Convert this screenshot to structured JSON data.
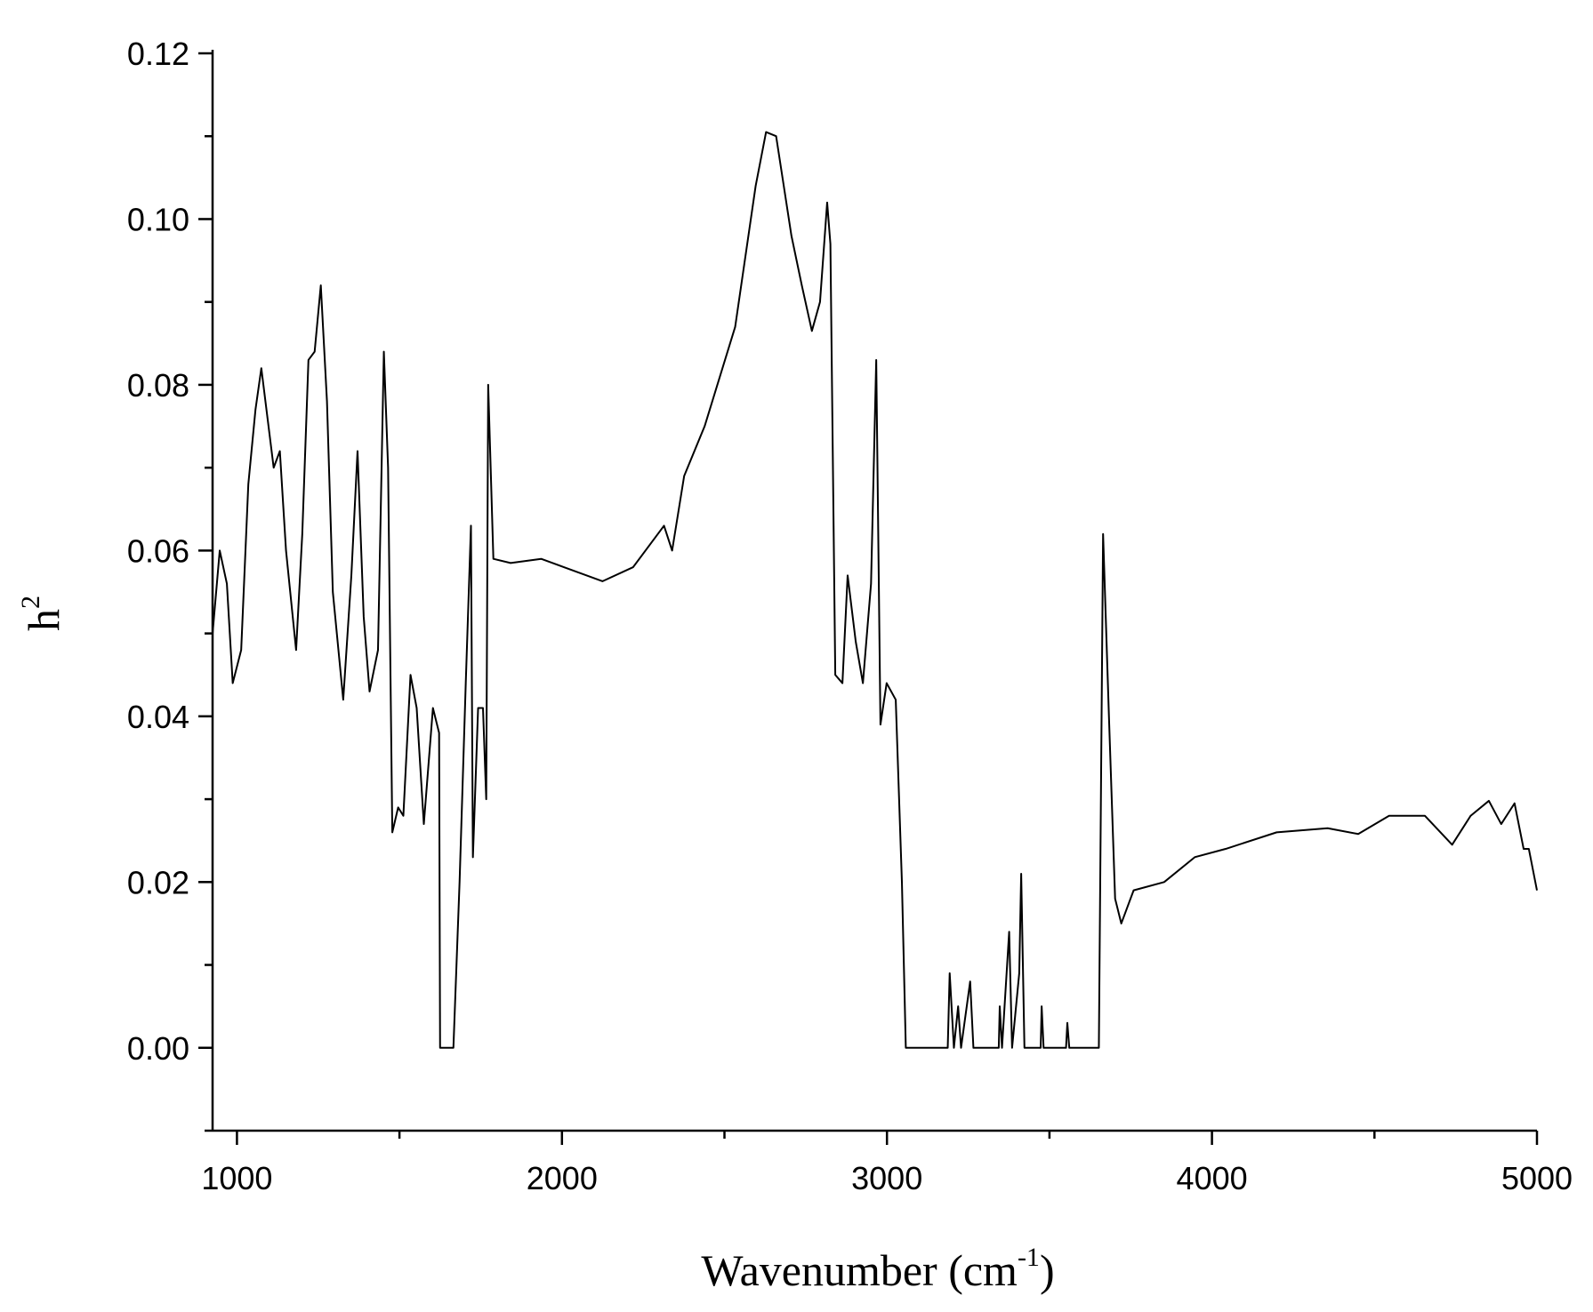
{
  "chart_data": {
    "type": "line",
    "xlabel": {
      "text": "Wavenumber (cm",
      "superscript": "-1",
      "suffix": ")"
    },
    "ylabel": {
      "text": "h",
      "superscript": "2"
    },
    "color": "#000000",
    "xlim": [
      925,
      5000
    ],
    "xticks": [
      1000,
      2000,
      3000,
      4000,
      5000
    ],
    "xminor_ticks": [
      1500,
      2500,
      3500,
      4500
    ],
    "ylim": [
      -0.01,
      0.12
    ],
    "yticks": [
      {
        "value": 0,
        "label": "0.00"
      },
      0.02,
      0.04,
      0.06,
      0.08,
      {
        "value": 0.1,
        "label": "0.10"
      },
      0.12
    ],
    "yminor_ticks": [
      -0.01,
      0.01,
      0.03,
      0.05,
      0.07,
      0.09,
      0.11
    ],
    "x": [
      925,
      947,
      969,
      987,
      1013,
      1035,
      1057,
      1075,
      1094,
      1113,
      1132,
      1151,
      1182,
      1201,
      1220,
      1239,
      1258,
      1277,
      1295,
      1327,
      1352,
      1371,
      1390,
      1408,
      1434,
      1452,
      1465,
      1478,
      1496,
      1512,
      1534,
      1553,
      1575,
      1603,
      1622,
      1625,
      1666,
      1685,
      1704,
      1720,
      1726,
      1742,
      1757,
      1767,
      1773,
      1789,
      1842,
      1936,
      2125,
      2219,
      2314,
      2339,
      2376,
      2439,
      2533,
      2596,
      2628,
      2659,
      2706,
      2738,
      2769,
      2794,
      2816,
      2826,
      2841,
      2863,
      2879,
      2904,
      2926,
      2951,
      2967,
      2980,
      2999,
      3027,
      3046,
      3058,
      3187,
      3193,
      3206,
      3219,
      3228,
      3256,
      3266,
      3344,
      3347,
      3354,
      3376,
      3385,
      3407,
      3413,
      3423,
      3473,
      3476,
      3482,
      3551,
      3555,
      3561,
      3652,
      3665,
      3683,
      3702,
      3721,
      3759,
      3853,
      3947,
      4042,
      4199,
      4356,
      4450,
      4545,
      4655,
      4739,
      4796,
      4852,
      4890,
      4931,
      4959,
      4975,
      5000
    ],
    "values": [
      0.05,
      0.06,
      0.056,
      0.044,
      0.048,
      0.068,
      0.077,
      0.082,
      0.076,
      0.07,
      0.072,
      0.06,
      0.048,
      0.062,
      0.083,
      0.084,
      0.092,
      0.078,
      0.055,
      0.042,
      0.057,
      0.072,
      0.052,
      0.043,
      0.048,
      0.084,
      0.07,
      0.026,
      0.029,
      0.028,
      0.045,
      0.041,
      0.027,
      0.041,
      0.038,
      0.0,
      0.0,
      0.02,
      0.044,
      0.063,
      0.023,
      0.041,
      0.041,
      0.03,
      0.08,
      0.059,
      0.0585,
      0.059,
      0.0563,
      0.058,
      0.063,
      0.06,
      0.069,
      0.075,
      0.087,
      0.104,
      0.1105,
      0.11,
      0.098,
      0.092,
      0.0865,
      0.09,
      0.102,
      0.097,
      0.045,
      0.044,
      0.057,
      0.049,
      0.044,
      0.056,
      0.083,
      0.039,
      0.044,
      0.042,
      0.02,
      0.0,
      0.0,
      0.009,
      0.0,
      0.005,
      0.0,
      0.008,
      0.0,
      0.0,
      0.005,
      0.0,
      0.014,
      0.0,
      0.009,
      0.021,
      0.0,
      0.0,
      0.005,
      0.0,
      0.0,
      0.003,
      0.0,
      0.0,
      0.062,
      0.04,
      0.018,
      0.015,
      0.019,
      0.02,
      0.023,
      0.024,
      0.026,
      0.0265,
      0.0258,
      0.028,
      0.028,
      0.0245,
      0.028,
      0.0298,
      0.027,
      0.0295,
      0.024,
      0.024,
      0.019
    ]
  }
}
